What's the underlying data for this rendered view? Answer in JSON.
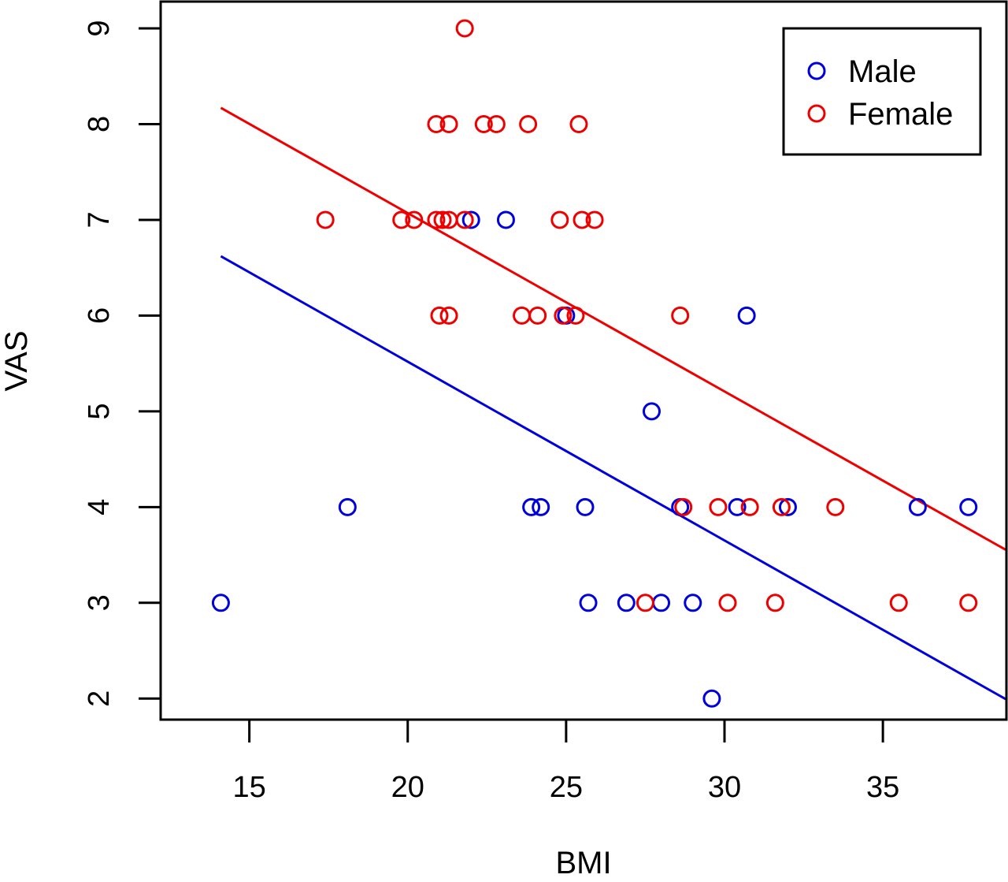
{
  "chart_data": {
    "type": "scatter",
    "title": "",
    "xlabel": "BMI",
    "ylabel": "VAS",
    "xlim": [
      12.2,
      38.9
    ],
    "ylim": [
      1.78,
      9.28
    ],
    "xticks": [
      15,
      20,
      25,
      30,
      35
    ],
    "yticks": [
      2,
      3,
      4,
      5,
      6,
      7,
      8,
      9
    ],
    "grid": false,
    "legend_position": "top-right",
    "series": [
      {
        "name": "Male",
        "color": "#0000dd",
        "marker": "open-circle",
        "points": [
          [
            14.1,
            3
          ],
          [
            18.1,
            4
          ],
          [
            22.0,
            7
          ],
          [
            23.1,
            7
          ],
          [
            23.9,
            4
          ],
          [
            24.2,
            4
          ],
          [
            25.0,
            6
          ],
          [
            25.6,
            4
          ],
          [
            25.7,
            3
          ],
          [
            26.9,
            3
          ],
          [
            27.7,
            5
          ],
          [
            28.0,
            3
          ],
          [
            28.6,
            4
          ],
          [
            29.0,
            3
          ],
          [
            29.6,
            2
          ],
          [
            30.4,
            4
          ],
          [
            30.7,
            6
          ],
          [
            32.0,
            4
          ],
          [
            36.1,
            4
          ],
          [
            37.7,
            4
          ]
        ],
        "fit_line": {
          "x": [
            14.1,
            38.9
          ],
          "y": [
            6.62,
            1.99
          ]
        }
      },
      {
        "name": "Female",
        "color": "#ee0000",
        "marker": "open-circle",
        "points": [
          [
            17.4,
            7
          ],
          [
            19.8,
            7
          ],
          [
            20.2,
            7
          ],
          [
            20.9,
            7
          ],
          [
            21.1,
            7
          ],
          [
            21.3,
            7
          ],
          [
            21.8,
            7
          ],
          [
            21.0,
            6
          ],
          [
            21.3,
            6
          ],
          [
            20.9,
            8
          ],
          [
            21.3,
            8
          ],
          [
            21.8,
            9
          ],
          [
            22.4,
            8
          ],
          [
            22.8,
            8
          ],
          [
            23.8,
            8
          ],
          [
            23.6,
            6
          ],
          [
            24.1,
            6
          ],
          [
            24.8,
            7
          ],
          [
            24.9,
            6
          ],
          [
            25.3,
            6
          ],
          [
            25.4,
            8
          ],
          [
            25.5,
            7
          ],
          [
            25.9,
            7
          ],
          [
            27.5,
            3
          ],
          [
            28.6,
            6
          ],
          [
            28.7,
            4
          ],
          [
            29.8,
            4
          ],
          [
            30.1,
            3
          ],
          [
            30.8,
            4
          ],
          [
            31.6,
            3
          ],
          [
            31.8,
            4
          ],
          [
            33.5,
            4
          ],
          [
            35.5,
            3
          ],
          [
            37.7,
            3
          ]
        ],
        "fit_line": {
          "x": [
            14.1,
            38.9
          ],
          "y": [
            8.17,
            3.55
          ]
        }
      }
    ]
  }
}
